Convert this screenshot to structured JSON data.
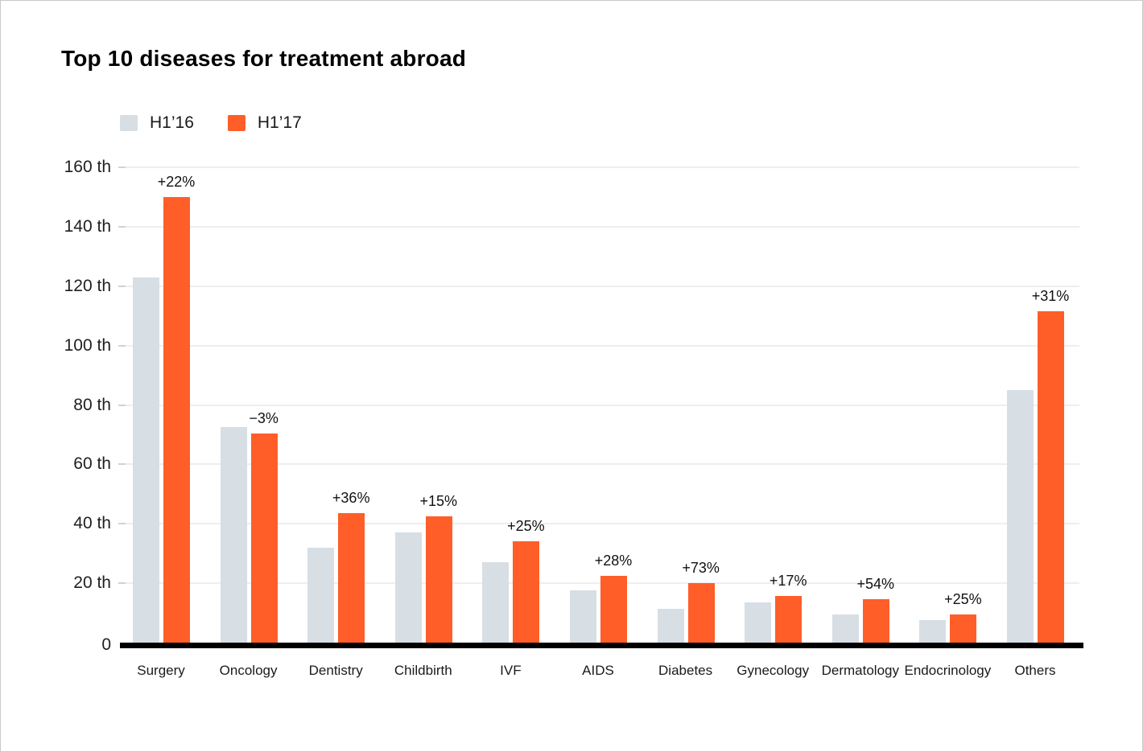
{
  "page": {
    "background": "#ffffff",
    "border_color": "#c9c9c9"
  },
  "chart_data": {
    "type": "bar",
    "title": "Top 10 diseases for treatment abroad",
    "unit_suffix": "th",
    "legend_position": "top-left",
    "grid": true,
    "axis_color": "#000000",
    "gridline_color": "#eeeeee",
    "categories": [
      "Surgery",
      "Oncology",
      "Dentistry",
      "Childbirth",
      "IVF",
      "AIDS",
      "Diabetes",
      "Gynecology",
      "Dermatology",
      "Endocrinology",
      "Others"
    ],
    "series": [
      {
        "name": "H1’16",
        "color": "#D7DEE4",
        "values": [
          123,
          72.5,
          32,
          37,
          27,
          17.5,
          11.5,
          13.5,
          9.5,
          7.5,
          85
        ]
      },
      {
        "name": "H1’17",
        "color": "#FF5E29",
        "values": [
          150,
          70.5,
          43.5,
          42.5,
          34,
          22.5,
          20,
          15.8,
          14.6,
          9.4,
          111.5
        ]
      }
    ],
    "change_labels": [
      "+22%",
      "−3%",
      "+36%",
      "+15%",
      "+25%",
      "+28%",
      "+73%",
      "+17%",
      "+54%",
      "+25%",
      "+31%"
    ],
    "legend": [
      {
        "label": "H1’16",
        "color": "#D7DEE4"
      },
      {
        "label": "H1’17",
        "color": "#FF5E29"
      }
    ],
    "y_axis": {
      "ylim": [
        0,
        160
      ],
      "ticks": [
        {
          "value": 0,
          "label": "0"
        },
        {
          "value": 20,
          "label": "20 th"
        },
        {
          "value": 40,
          "label": "40 th"
        },
        {
          "value": 60,
          "label": "60 th"
        },
        {
          "value": 80,
          "label": "80 th"
        },
        {
          "value": 100,
          "label": "100 th"
        },
        {
          "value": 120,
          "label": "120 th"
        },
        {
          "value": 140,
          "label": "140 th"
        },
        {
          "value": 160,
          "label": "160 th"
        }
      ]
    }
  }
}
